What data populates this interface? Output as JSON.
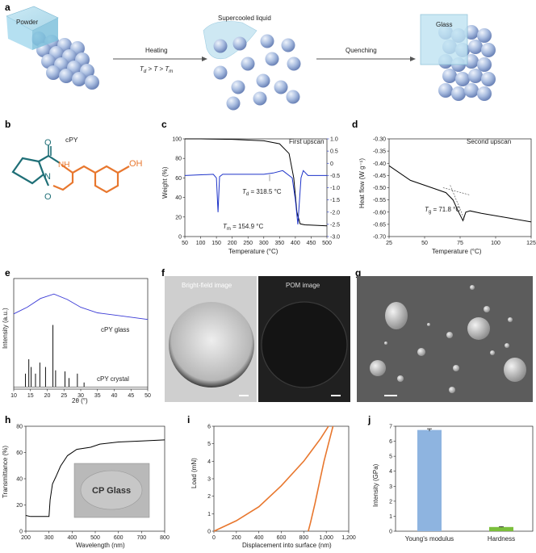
{
  "panel_a": {
    "letter": "a",
    "powder": "Powder",
    "supercooled": "Supercooled liquid",
    "glass": "Glass",
    "heating": "Heating",
    "cond_td": "T",
    "cond_td_sub": "d",
    "cond_gt1": " > ",
    "cond_t": "T",
    "cond_gt2": " > ",
    "cond_tm": "T",
    "cond_tm_sub": "m",
    "quenching": "Quenching"
  },
  "panel_b": {
    "letter": "b",
    "title": "cPY",
    "labels": {
      "o1": "O",
      "nh": "NH",
      "n": "N",
      "o2": "O",
      "oh": "OH"
    },
    "colors": {
      "ring": "#1f6f77",
      "tyr": "#e8772e"
    }
  },
  "panel_c": {
    "letter": "c",
    "note": "First upscan",
    "ann_td": "Td = 318.5 °C",
    "ann_td_base": "T",
    "ann_td_sub": "d",
    "ann_td_rest": " = 318.5 °C",
    "ann_tm_base": "T",
    "ann_tm_sub": "m",
    "ann_tm_rest": " = 154.9 °C",
    "xlabel": "Temperature (°C)",
    "ylabel": "Weight (%)"
  },
  "panel_d": {
    "letter": "d",
    "note": "Second upscan",
    "ann_tg_base": "T",
    "ann_tg_sub": "g",
    "ann_tg_rest": " = 71.8 °C",
    "xlabel": "Temperature (°C)",
    "ylabel": "Heat flow (W g⁻¹)"
  },
  "panel_e": {
    "letter": "e",
    "glass": "cPY glass",
    "crystal": "cPY crystal",
    "xlabel": "2θ (°)",
    "ylabel": "Intensity (a.u.)"
  },
  "panel_f": {
    "letter": "f",
    "bf": "Bright-field image",
    "pom": "POM image"
  },
  "panel_g": {
    "letter": "g"
  },
  "panel_h": {
    "letter": "h",
    "inset": "CP Glass",
    "xlabel": "Wavelength (nm)",
    "ylabel": "Transmittance (%)"
  },
  "panel_i": {
    "letter": "i",
    "xlabel": "Displacement into surface (nm)",
    "ylabel": "Load (mN)"
  },
  "panel_j": {
    "letter": "j",
    "xlabel_1": "Young's modulus",
    "xlabel_2": "Hardness",
    "ylabel": "Intensity (GPa)"
  },
  "chart_data": [
    {
      "id": "c",
      "type": "line",
      "xlim": [
        50,
        500
      ],
      "ylim": [
        0,
        100
      ],
      "y2lim": [
        -3.0,
        1.0
      ],
      "xticks": [
        "50",
        "100",
        "150",
        "200",
        "250",
        "300",
        "350",
        "400",
        "450",
        "500"
      ],
      "yticks": [
        "0",
        "20",
        "40",
        "60",
        "80",
        "100"
      ],
      "y2ticks": [
        "1.0",
        "0.5",
        "0",
        "-0.5",
        "-1.0",
        "-1.5",
        "-2.0",
        "-2.5",
        "-3.0"
      ],
      "series": [
        {
          "axis": "left",
          "color": "#000000",
          "x": [
            50,
            100,
            200,
            300,
            350,
            380,
            395,
            405,
            415,
            430,
            500
          ],
          "y": [
            100,
            100,
            99.5,
            98,
            95,
            85,
            60,
            25,
            13,
            12,
            11
          ]
        },
        {
          "axis": "right",
          "color": "#1d33c9",
          "x": [
            50,
            140,
            150,
            155,
            160,
            170,
            300,
            330,
            360,
            390,
            400,
            408,
            418,
            425,
            440,
            470,
            500
          ],
          "y": [
            -0.5,
            -0.45,
            -0.6,
            -2.0,
            -0.55,
            -0.45,
            -0.45,
            -0.4,
            -0.3,
            -0.6,
            -1.5,
            -2.5,
            -0.6,
            -0.3,
            -0.5,
            -0.5,
            -0.5
          ]
        }
      ]
    },
    {
      "id": "d",
      "type": "line",
      "xlim": [
        25,
        125
      ],
      "ylim": [
        -0.7,
        -0.3
      ],
      "xticks": [
        "25",
        "50",
        "75",
        "100",
        "125"
      ],
      "yticks": [
        "-0.30",
        "-0.35",
        "-0.40",
        "-0.45",
        "-0.50",
        "-0.55",
        "-0.60",
        "-0.65",
        "-0.70"
      ],
      "series": [
        {
          "color": "#000000",
          "x": [
            25,
            40,
            55,
            65,
            70,
            74,
            77,
            79,
            82,
            90,
            100,
            110,
            125
          ],
          "y": [
            -0.41,
            -0.47,
            -0.5,
            -0.52,
            -0.55,
            -0.6,
            -0.635,
            -0.6,
            -0.595,
            -0.605,
            -0.615,
            -0.625,
            -0.64
          ]
        }
      ]
    },
    {
      "id": "e",
      "type": "line",
      "xlim": [
        10,
        50
      ],
      "xticks": [
        "10",
        "15",
        "20",
        "25",
        "30",
        "35",
        "40",
        "45",
        "50"
      ],
      "series": [
        {
          "name": "cPY glass",
          "color": "#3a3ad6",
          "x": [
            10,
            14,
            18,
            22,
            26,
            30,
            35,
            40,
            45,
            50
          ],
          "y": [
            0.68,
            0.74,
            0.82,
            0.86,
            0.81,
            0.74,
            0.69,
            0.67,
            0.65,
            0.63
          ]
        },
        {
          "name": "cPY crystal",
          "color": "#111111",
          "peaks": [
            [
              13.5,
              0.12
            ],
            [
              14.5,
              0.25
            ],
            [
              15.2,
              0.18
            ],
            [
              16.5,
              0.12
            ],
            [
              17.8,
              0.22
            ],
            [
              19.5,
              0.18
            ],
            [
              21.7,
              0.56
            ],
            [
              22.5,
              0.15
            ],
            [
              25.3,
              0.14
            ],
            [
              26.5,
              0.08
            ],
            [
              29,
              0.12
            ],
            [
              31,
              0.04
            ]
          ]
        }
      ]
    },
    {
      "id": "h",
      "type": "line",
      "xlim": [
        200,
        800
      ],
      "ylim": [
        0,
        100
      ],
      "xticks": [
        "200",
        "300",
        "400",
        "500",
        "600",
        "700",
        "800"
      ],
      "yticks": [
        "0",
        "20",
        "40",
        "60",
        "80"
      ],
      "series": [
        {
          "color": "#000000",
          "x": [
            200,
            220,
            240,
            300,
            305,
            315,
            330,
            350,
            380,
            420,
            480,
            520,
            600,
            700,
            800
          ],
          "y": [
            15,
            14,
            14,
            14,
            30,
            45,
            52,
            62,
            72,
            78,
            80,
            83,
            85,
            86,
            87
          ]
        }
      ]
    },
    {
      "id": "i",
      "type": "line",
      "xlim": [
        0,
        1200
      ],
      "ylim": [
        0,
        6
      ],
      "xticks": [
        "0",
        "200",
        "400",
        "600",
        "800",
        "1,000",
        "1,200"
      ],
      "yticks": [
        "0",
        "1",
        "2",
        "3",
        "4",
        "5",
        "6"
      ],
      "series": [
        {
          "color": "#e8772e",
          "loading_x": [
            0,
            100,
            200,
            400,
            600,
            800,
            950,
            1020
          ],
          "loading_y": [
            0,
            0.3,
            0.6,
            1.4,
            2.6,
            4.0,
            5.3,
            6.0
          ],
          "unloading_x": [
            1060,
            1020,
            980,
            940,
            900,
            860,
            840
          ],
          "unloading_y": [
            6.0,
            5.0,
            4.0,
            2.8,
            1.6,
            0.5,
            0
          ]
        }
      ]
    },
    {
      "id": "j",
      "type": "bar",
      "categories": [
        "Young's modulus",
        "Hardness"
      ],
      "values": [
        6.75,
        0.28
      ],
      "errors": [
        0.08,
        0.02
      ],
      "colors": [
        "#8eb4e0",
        "#7bbf3c"
      ],
      "ylim": [
        0,
        7
      ],
      "yticks": [
        "0",
        "1",
        "2",
        "3",
        "4",
        "5",
        "6",
        "7"
      ]
    }
  ]
}
